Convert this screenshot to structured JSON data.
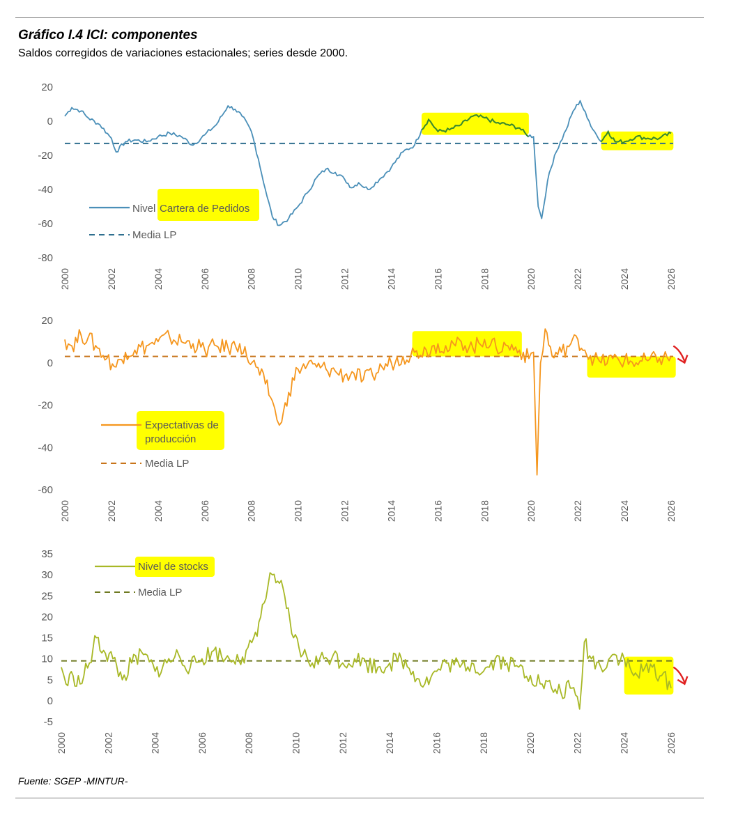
{
  "header": {
    "title": "Gráfico I.4 ICI: componentes",
    "subtitle": "Saldos corregidos de variaciones estacionales; series desde 2000."
  },
  "footer": {
    "source": "Fuente: SGEP -MINTUR-"
  },
  "colors": {
    "pedidos": "#4a8fb8",
    "pedidos_highlight": "#3a8a2a",
    "pedidos_media": "#2f6f8f",
    "expectativas": "#f5961d",
    "expectativas_media": "#c8741a",
    "stocks": "#a8b826",
    "stocks_media": "#6f7a22",
    "highlighter": "#ffff00",
    "annotation_arrow": "#e02020"
  },
  "chart_data": [
    {
      "type": "line",
      "xlim": [
        2000,
        2026
      ],
      "ylim": [
        -80,
        20
      ],
      "yticks": [
        20,
        0,
        -20,
        -40,
        -60,
        -80
      ],
      "xticks": [
        "2000",
        "2002",
        "2004",
        "2006",
        "2008",
        "2010",
        "2012",
        "2014",
        "2016",
        "2018",
        "2020",
        "2022",
        "2024",
        "2026"
      ],
      "grid": false,
      "legend_position": "bottom-left",
      "series": [
        {
          "name": "Nivel Cartera de Pedidos",
          "style": "solid",
          "points": [
            [
              2000.0,
              3
            ],
            [
              2000.3,
              8
            ],
            [
              2000.7,
              6
            ],
            [
              2001.0,
              2
            ],
            [
              2001.5,
              -2
            ],
            [
              2002.0,
              -10
            ],
            [
              2002.2,
              -18
            ],
            [
              2002.6,
              -12
            ],
            [
              2003.0,
              -11
            ],
            [
              2003.5,
              -12
            ],
            [
              2004.0,
              -9
            ],
            [
              2004.5,
              -7
            ],
            [
              2005.0,
              -9
            ],
            [
              2005.5,
              -14
            ],
            [
              2006.0,
              -8
            ],
            [
              2006.5,
              -2
            ],
            [
              2007.0,
              9
            ],
            [
              2007.3,
              7
            ],
            [
              2007.6,
              3
            ],
            [
              2008.0,
              -6
            ],
            [
              2008.3,
              -22
            ],
            [
              2008.6,
              -40
            ],
            [
              2008.9,
              -56
            ],
            [
              2009.2,
              -61
            ],
            [
              2009.6,
              -57
            ],
            [
              2010.0,
              -50
            ],
            [
              2010.4,
              -42
            ],
            [
              2010.8,
              -33
            ],
            [
              2011.2,
              -28
            ],
            [
              2011.6,
              -30
            ],
            [
              2012.0,
              -34
            ],
            [
              2012.3,
              -39
            ],
            [
              2012.6,
              -36
            ],
            [
              2013.0,
              -40
            ],
            [
              2013.5,
              -34
            ],
            [
              2014.0,
              -27
            ],
            [
              2014.5,
              -18
            ],
            [
              2015.0,
              -14
            ],
            [
              2015.3,
              -5
            ],
            [
              2015.6,
              1
            ],
            [
              2016.0,
              -6
            ],
            [
              2016.5,
              -5
            ],
            [
              2017.0,
              -2
            ],
            [
              2017.5,
              3
            ],
            [
              2018.0,
              2
            ],
            [
              2018.5,
              -1
            ],
            [
              2019.0,
              -2
            ],
            [
              2019.5,
              -4
            ],
            [
              2019.8,
              -8
            ],
            [
              2020.1,
              -9
            ],
            [
              2020.3,
              -50
            ],
            [
              2020.45,
              -57
            ],
            [
              2020.7,
              -35
            ],
            [
              2021.0,
              -20
            ],
            [
              2021.5,
              -5
            ],
            [
              2021.8,
              6
            ],
            [
              2022.1,
              12
            ],
            [
              2022.4,
              2
            ],
            [
              2022.8,
              -8
            ],
            [
              2023.0,
              -12
            ],
            [
              2023.3,
              -6
            ],
            [
              2023.6,
              -12
            ],
            [
              2024.0,
              -12
            ],
            [
              2024.5,
              -9
            ],
            [
              2025.0,
              -10
            ],
            [
              2025.5,
              -10
            ],
            [
              2026.0,
              -7
            ]
          ]
        },
        {
          "name": "Media LP",
          "style": "dashed",
          "value": -13
        }
      ],
      "highlights": [
        {
          "label": "legend",
          "target": "Cartera de Pedidos"
        },
        {
          "x": [
            2015.3,
            2019.9
          ],
          "y": [
            -8,
            5
          ]
        },
        {
          "x": [
            2023.0,
            2026.1
          ],
          "y": [
            -17,
            -6
          ]
        }
      ]
    },
    {
      "type": "line",
      "xlim": [
        2000,
        2026
      ],
      "ylim": [
        -60,
        20
      ],
      "yticks": [
        20,
        0,
        -20,
        -40,
        -60
      ],
      "xticks": [
        "2000",
        "2002",
        "2004",
        "2006",
        "2008",
        "2010",
        "2012",
        "2014",
        "2016",
        "2018",
        "2020",
        "2022",
        "2024",
        "2026"
      ],
      "grid": false,
      "legend_position": "bottom-left",
      "series": [
        {
          "name": "Expectativas de producción",
          "style": "solid",
          "points": [
            [
              2000.0,
              11
            ],
            [
              2000.3,
              8
            ],
            [
              2000.7,
              13
            ],
            [
              2001.0,
              12
            ],
            [
              2001.4,
              7
            ],
            [
              2001.8,
              2
            ],
            [
              2002.2,
              -2
            ],
            [
              2002.6,
              5
            ],
            [
              2003.0,
              6
            ],
            [
              2003.5,
              8
            ],
            [
              2004.0,
              10
            ],
            [
              2004.5,
              12
            ],
            [
              2005.0,
              10
            ],
            [
              2005.5,
              9
            ],
            [
              2006.0,
              6
            ],
            [
              2006.5,
              8
            ],
            [
              2007.0,
              7
            ],
            [
              2007.5,
              9
            ],
            [
              2007.8,
              3
            ],
            [
              2008.2,
              -2
            ],
            [
              2008.6,
              -10
            ],
            [
              2008.9,
              -18
            ],
            [
              2009.1,
              -27
            ],
            [
              2009.3,
              -28
            ],
            [
              2009.6,
              -14
            ],
            [
              2010.0,
              -3
            ],
            [
              2010.4,
              -1
            ],
            [
              2010.8,
              -2
            ],
            [
              2011.2,
              -3
            ],
            [
              2011.6,
              -4
            ],
            [
              2012.0,
              -6
            ],
            [
              2012.4,
              -5
            ],
            [
              2012.8,
              -8
            ],
            [
              2013.2,
              -6
            ],
            [
              2013.6,
              -2
            ],
            [
              2014.0,
              0
            ],
            [
              2014.5,
              3
            ],
            [
              2015.0,
              5
            ],
            [
              2015.5,
              6
            ],
            [
              2016.0,
              9
            ],
            [
              2016.5,
              6
            ],
            [
              2017.0,
              10
            ],
            [
              2017.5,
              7
            ],
            [
              2018.0,
              11
            ],
            [
              2018.5,
              7
            ],
            [
              2019.0,
              8
            ],
            [
              2019.5,
              6
            ],
            [
              2019.9,
              2
            ],
            [
              2020.1,
              5
            ],
            [
              2020.25,
              -53
            ],
            [
              2020.4,
              0
            ],
            [
              2020.6,
              16
            ],
            [
              2020.9,
              3
            ],
            [
              2021.3,
              5
            ],
            [
              2021.7,
              9
            ],
            [
              2022.0,
              11
            ],
            [
              2022.3,
              6
            ],
            [
              2022.7,
              2
            ],
            [
              2023.0,
              0
            ],
            [
              2023.5,
              2
            ],
            [
              2024.0,
              1
            ],
            [
              2024.5,
              0
            ],
            [
              2025.0,
              1
            ],
            [
              2025.5,
              2
            ],
            [
              2026.0,
              3
            ]
          ]
        },
        {
          "name": "Media LP",
          "style": "dashed",
          "value": 3
        }
      ],
      "highlights": [
        {
          "label": "legend",
          "target": "Expectativas de producción"
        },
        {
          "x": [
            2014.9,
            2019.6
          ],
          "y": [
            3,
            15
          ]
        },
        {
          "x": [
            2022.4,
            2026.2
          ],
          "y": [
            -7,
            3
          ]
        }
      ],
      "annotations": [
        {
          "type": "arrow",
          "direction": "down-right",
          "x": 2026.1,
          "y": 4
        }
      ]
    },
    {
      "type": "line",
      "xlim": [
        2000,
        2026
      ],
      "ylim": [
        -5,
        35
      ],
      "yticks": [
        35,
        30,
        25,
        20,
        15,
        10,
        5,
        0,
        -5
      ],
      "xticks": [
        "2000",
        "2002",
        "2004",
        "2006",
        "2008",
        "2010",
        "2012",
        "2014",
        "2016",
        "2018",
        "2020",
        "2022",
        "2024",
        "2026"
      ],
      "grid": false,
      "legend_position": "top-left",
      "series": [
        {
          "name": "Nivel de stocks",
          "style": "solid",
          "points": [
            [
              2000.0,
              8
            ],
            [
              2000.2,
              4
            ],
            [
              2000.5,
              6
            ],
            [
              2000.8,
              4
            ],
            [
              2001.2,
              9
            ],
            [
              2001.5,
              15
            ],
            [
              2001.8,
              12
            ],
            [
              2002.2,
              10
            ],
            [
              2002.6,
              5
            ],
            [
              2003.0,
              9
            ],
            [
              2003.5,
              11
            ],
            [
              2004.0,
              7
            ],
            [
              2004.5,
              9
            ],
            [
              2005.0,
              11
            ],
            [
              2005.5,
              8
            ],
            [
              2006.0,
              10
            ],
            [
              2006.5,
              12
            ],
            [
              2007.0,
              10
            ],
            [
              2007.5,
              11
            ],
            [
              2007.8,
              9
            ],
            [
              2008.2,
              15
            ],
            [
              2008.5,
              20
            ],
            [
              2008.8,
              27
            ],
            [
              2009.0,
              30
            ],
            [
              2009.3,
              28
            ],
            [
              2009.6,
              22
            ],
            [
              2009.9,
              15
            ],
            [
              2010.3,
              11
            ],
            [
              2010.7,
              9
            ],
            [
              2011.2,
              10
            ],
            [
              2011.6,
              11
            ],
            [
              2012.0,
              9
            ],
            [
              2012.5,
              10
            ],
            [
              2013.0,
              9
            ],
            [
              2013.5,
              8
            ],
            [
              2014.0,
              9
            ],
            [
              2014.5,
              10
            ],
            [
              2015.0,
              7
            ],
            [
              2015.5,
              4
            ],
            [
              2016.0,
              7
            ],
            [
              2016.5,
              9
            ],
            [
              2017.0,
              8
            ],
            [
              2017.5,
              9
            ],
            [
              2018.0,
              7
            ],
            [
              2018.5,
              10
            ],
            [
              2019.0,
              9
            ],
            [
              2019.5,
              8
            ],
            [
              2020.0,
              6
            ],
            [
              2020.5,
              4
            ],
            [
              2020.9,
              3
            ],
            [
              2021.3,
              2
            ],
            [
              2021.7,
              3
            ],
            [
              2022.0,
              1
            ],
            [
              2022.1,
              -2
            ],
            [
              2022.3,
              14
            ],
            [
              2022.6,
              10
            ],
            [
              2023.0,
              8
            ],
            [
              2023.5,
              11
            ],
            [
              2024.0,
              10
            ],
            [
              2024.4,
              6
            ],
            [
              2024.8,
              7
            ],
            [
              2025.2,
              8
            ],
            [
              2025.6,
              6
            ],
            [
              2026.0,
              3
            ]
          ]
        },
        {
          "name": "Media LP",
          "style": "dashed",
          "value": 9.5
        }
      ],
      "highlights": [
        {
          "label": "legend",
          "target": "Nivel de stocks"
        },
        {
          "x": [
            2024.0,
            2026.1
          ],
          "y": [
            1.5,
            10.5
          ]
        }
      ],
      "annotations": [
        {
          "type": "arrow",
          "direction": "down-right",
          "x": 2026.1,
          "y": 6
        }
      ]
    }
  ],
  "legends": [
    {
      "line_label": "Nivel",
      "highlight_label": "Cartera de Pedidos",
      "media_label": "Media LP"
    },
    {
      "line_label": "Expectativas de",
      "line_label2": "producción",
      "media_label": "Media LP"
    },
    {
      "line_label": "Nivel de stocks",
      "media_label": "Media LP"
    }
  ]
}
